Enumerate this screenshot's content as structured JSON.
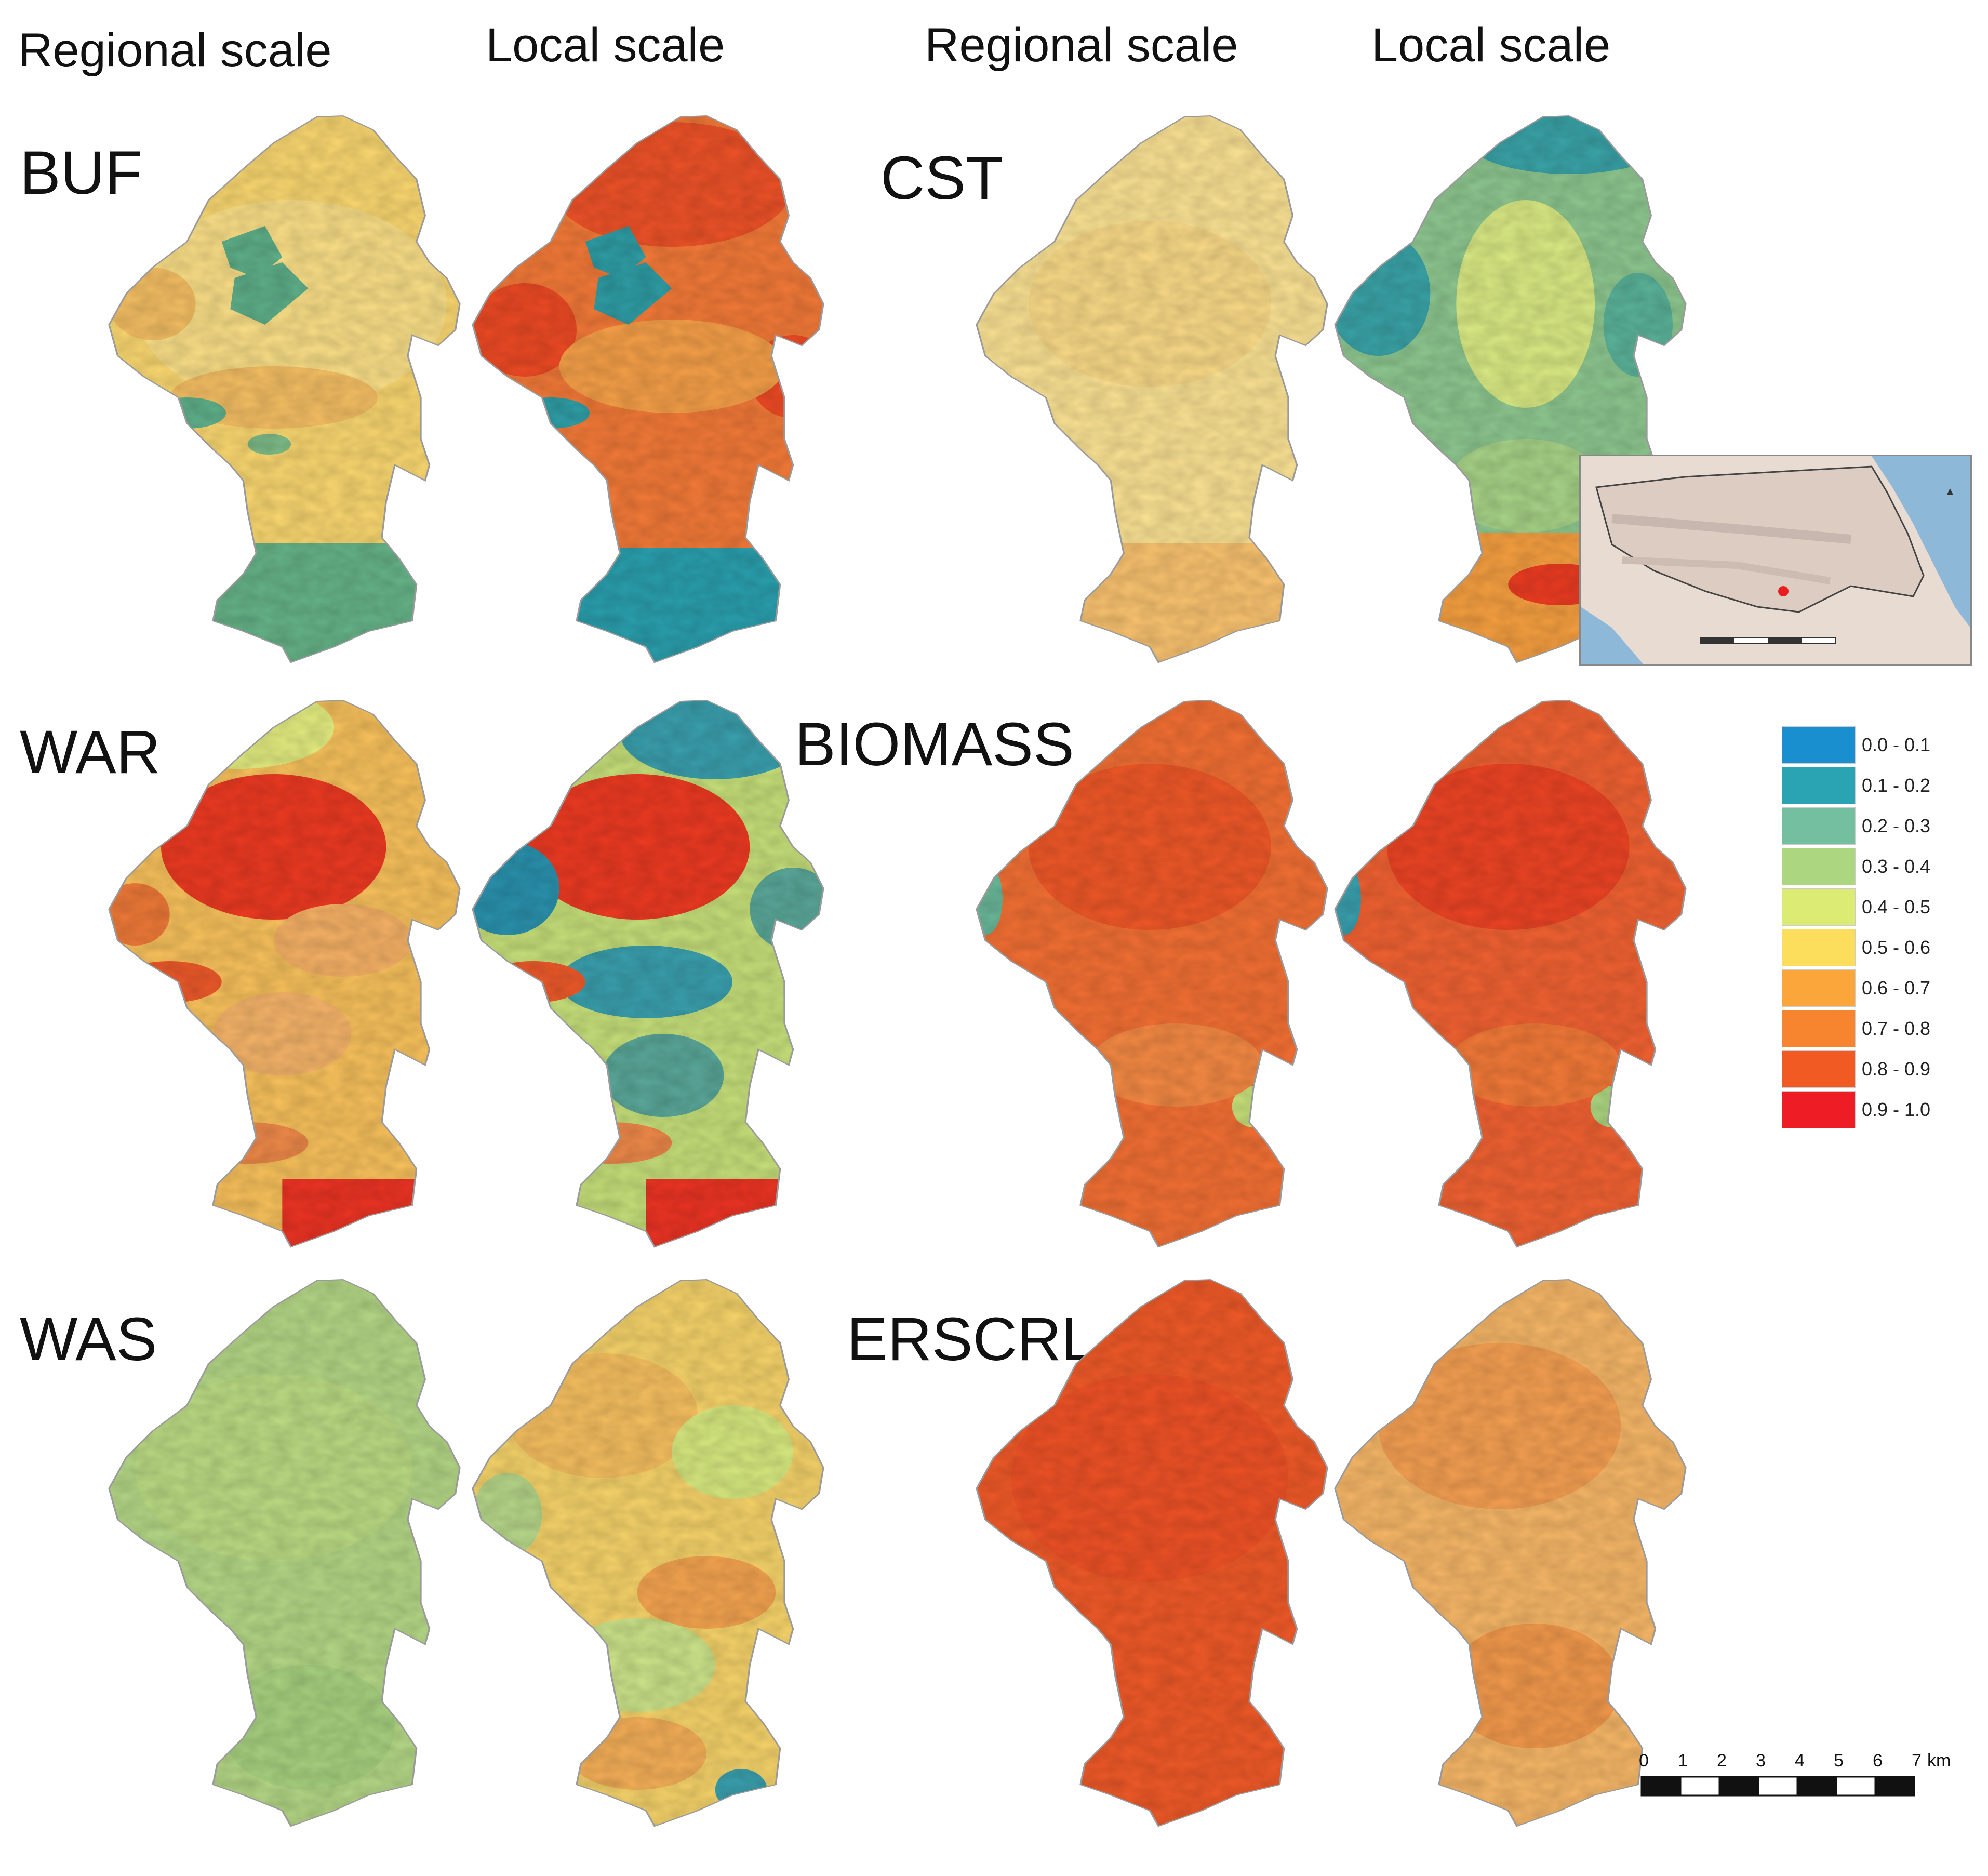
{
  "headers": {
    "col1": "Regional scale",
    "col2": "Local scale",
    "col3": "Regional scale",
    "col4": "Local scale"
  },
  "panels": {
    "buf": "BUF",
    "cst": "CST",
    "war": "WAR",
    "biomass": "BIOMASS",
    "was": "WAS",
    "erscrl": "ERSCRL"
  },
  "legend": {
    "items": [
      {
        "label": "0.0 - 0.1",
        "color": "#1a8fd0"
      },
      {
        "label": "0.1 - 0.2",
        "color": "#2aa3b2"
      },
      {
        "label": "0.2 - 0.3",
        "color": "#73bfa0"
      },
      {
        "label": "0.3 - 0.4",
        "color": "#acd680"
      },
      {
        "label": "0.4 - 0.5",
        "color": "#dbeb74"
      },
      {
        "label": "0.5 - 0.6",
        "color": "#fddd5c"
      },
      {
        "label": "0.6 - 0.7",
        "color": "#fba63a"
      },
      {
        "label": "0.7 - 0.8",
        "color": "#f78530"
      },
      {
        "label": "0.8 - 0.9",
        "color": "#f15a22"
      },
      {
        "label": "0.9 - 1.0",
        "color": "#ee1c24"
      }
    ]
  },
  "scalebar": {
    "ticks": [
      "0",
      "1",
      "2",
      "3",
      "4",
      "5",
      "6",
      "7"
    ],
    "unit": "km"
  }
}
